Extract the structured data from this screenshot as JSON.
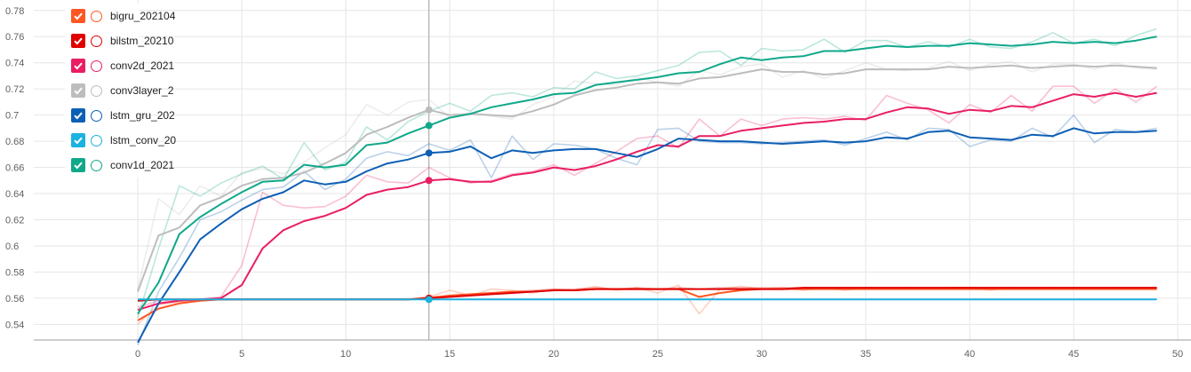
{
  "chart_data": {
    "type": "line",
    "title": "",
    "xlabel": "",
    "ylabel": "",
    "xlim": [
      -5,
      50
    ],
    "ylim": [
      0.528,
      0.788
    ],
    "grid": true,
    "legend_position": "top-left",
    "x_ticks": [
      0,
      5,
      10,
      15,
      20,
      25,
      30,
      35,
      40,
      45,
      50
    ],
    "y_ticks": [
      0.54,
      0.56,
      0.58,
      0.6,
      0.62,
      0.64,
      0.66,
      0.68,
      0.7,
      0.72,
      0.74,
      0.76,
      0.78
    ],
    "x_tick_labels": [
      "0",
      "5",
      "10",
      "15",
      "20",
      "25",
      "30",
      "35",
      "40",
      "45",
      "50"
    ],
    "y_tick_labels": [
      "0.54",
      "0.56",
      "0.58",
      "0.6",
      "0.62",
      "0.64",
      "0.66",
      "0.68",
      "0.7",
      "0.72",
      "0.74",
      "0.76",
      "0.78"
    ],
    "hover_x": 14,
    "x": [
      0,
      1,
      2,
      3,
      4,
      5,
      6,
      7,
      8,
      9,
      10,
      11,
      12,
      13,
      14,
      15,
      16,
      17,
      18,
      19,
      20,
      21,
      22,
      23,
      24,
      25,
      26,
      27,
      28,
      29,
      30,
      31,
      32,
      33,
      34,
      35,
      36,
      37,
      38,
      39,
      40,
      41,
      42,
      43,
      44,
      45,
      46,
      47,
      48,
      49
    ],
    "series": [
      {
        "name": "bigru_202104",
        "color": "#ff5722",
        "values": [
          0.543,
          0.552,
          0.556,
          0.558,
          0.559,
          0.559,
          0.559,
          0.559,
          0.559,
          0.559,
          0.559,
          0.559,
          0.559,
          0.559,
          0.56,
          0.562,
          0.563,
          0.564,
          0.565,
          0.565,
          0.566,
          0.566,
          0.567,
          0.567,
          0.567,
          0.567,
          0.567,
          0.561,
          0.564,
          0.566,
          0.567,
          0.567,
          0.567,
          0.567,
          0.567,
          0.567,
          0.567,
          0.567,
          0.567,
          0.567,
          0.567,
          0.567,
          0.567,
          0.567,
          0.567,
          0.567,
          0.567,
          0.567,
          0.567,
          0.567
        ],
        "raw": [
          0.54,
          0.555,
          0.557,
          0.559,
          0.559,
          0.559,
          0.559,
          0.559,
          0.559,
          0.559,
          0.559,
          0.559,
          0.559,
          0.559,
          0.561,
          0.566,
          0.562,
          0.567,
          0.566,
          0.564,
          0.567,
          0.566,
          0.569,
          0.566,
          0.568,
          0.564,
          0.57,
          0.548,
          0.567,
          0.569,
          0.567,
          0.568,
          0.566,
          0.568,
          0.566,
          0.568,
          0.567,
          0.568,
          0.567,
          0.568,
          0.568,
          0.566,
          0.568,
          0.567,
          0.568,
          0.567,
          0.567,
          0.568,
          0.567,
          0.567
        ]
      },
      {
        "name": "bilstm_20210",
        "color": "#e00000",
        "values": [
          0.558,
          0.559,
          0.559,
          0.559,
          0.559,
          0.559,
          0.559,
          0.559,
          0.559,
          0.559,
          0.559,
          0.559,
          0.559,
          0.559,
          0.56,
          0.561,
          0.562,
          0.563,
          0.564,
          0.565,
          0.566,
          0.566,
          0.567,
          0.567,
          0.567,
          0.567,
          0.567,
          0.567,
          0.567,
          0.567,
          0.567,
          0.567,
          0.568,
          0.568,
          0.568,
          0.568,
          0.568,
          0.568,
          0.568,
          0.568,
          0.568,
          0.568,
          0.568,
          0.568,
          0.568,
          0.568,
          0.568,
          0.568,
          0.568,
          0.568
        ],
        "raw": [
          0.558,
          0.559,
          0.559,
          0.559,
          0.559,
          0.559,
          0.559,
          0.559,
          0.559,
          0.559,
          0.559,
          0.559,
          0.559,
          0.559,
          0.561,
          0.562,
          0.563,
          0.564,
          0.565,
          0.566,
          0.567,
          0.567,
          0.568,
          0.567,
          0.568,
          0.567,
          0.568,
          0.567,
          0.568,
          0.568,
          0.568,
          0.568,
          0.568,
          0.568,
          0.568,
          0.568,
          0.568,
          0.568,
          0.568,
          0.568,
          0.568,
          0.568,
          0.568,
          0.568,
          0.568,
          0.568,
          0.568,
          0.568,
          0.568,
          0.568
        ]
      },
      {
        "name": "conv2d_2021",
        "color": "#e91e63",
        "values": [
          0.551,
          0.556,
          0.558,
          0.559,
          0.56,
          0.57,
          0.598,
          0.612,
          0.619,
          0.623,
          0.629,
          0.639,
          0.643,
          0.645,
          0.65,
          0.651,
          0.649,
          0.649,
          0.654,
          0.656,
          0.66,
          0.658,
          0.661,
          0.666,
          0.672,
          0.677,
          0.676,
          0.684,
          0.684,
          0.688,
          0.69,
          0.692,
          0.694,
          0.695,
          0.697,
          0.697,
          0.702,
          0.706,
          0.705,
          0.701,
          0.704,
          0.703,
          0.707,
          0.706,
          0.711,
          0.716,
          0.714,
          0.717,
          0.714,
          0.717
        ],
        "raw": [
          0.553,
          0.558,
          0.559,
          0.559,
          0.561,
          0.585,
          0.641,
          0.631,
          0.629,
          0.63,
          0.638,
          0.654,
          0.649,
          0.648,
          0.66,
          0.652,
          0.648,
          0.65,
          0.655,
          0.657,
          0.662,
          0.654,
          0.663,
          0.672,
          0.682,
          0.684,
          0.675,
          0.697,
          0.684,
          0.697,
          0.692,
          0.697,
          0.698,
          0.697,
          0.699,
          0.696,
          0.715,
          0.709,
          0.704,
          0.694,
          0.708,
          0.702,
          0.715,
          0.703,
          0.722,
          0.722,
          0.709,
          0.72,
          0.71,
          0.722
        ]
      },
      {
        "name": "conv3layer_2",
        "color": "#bdbdbd",
        "values": [
          0.565,
          0.608,
          0.614,
          0.631,
          0.637,
          0.646,
          0.651,
          0.652,
          0.656,
          0.663,
          0.671,
          0.685,
          0.691,
          0.698,
          0.704,
          0.7,
          0.701,
          0.7,
          0.699,
          0.703,
          0.708,
          0.715,
          0.719,
          0.721,
          0.724,
          0.725,
          0.724,
          0.728,
          0.729,
          0.732,
          0.735,
          0.733,
          0.733,
          0.731,
          0.732,
          0.735,
          0.735,
          0.735,
          0.735,
          0.737,
          0.736,
          0.737,
          0.738,
          0.736,
          0.737,
          0.738,
          0.737,
          0.738,
          0.737,
          0.736
        ],
        "raw": [
          0.567,
          0.636,
          0.624,
          0.646,
          0.638,
          0.656,
          0.659,
          0.655,
          0.664,
          0.675,
          0.685,
          0.708,
          0.7,
          0.71,
          0.712,
          0.698,
          0.702,
          0.699,
          0.697,
          0.708,
          0.714,
          0.726,
          0.724,
          0.723,
          0.729,
          0.725,
          0.722,
          0.734,
          0.731,
          0.737,
          0.739,
          0.729,
          0.734,
          0.728,
          0.734,
          0.74,
          0.735,
          0.734,
          0.736,
          0.741,
          0.734,
          0.739,
          0.741,
          0.733,
          0.739,
          0.739,
          0.735,
          0.74,
          0.736,
          0.735
        ]
      },
      {
        "name": "lstm_gru_202",
        "color": "#0d5fb5",
        "values": [
          0.526,
          0.556,
          0.58,
          0.605,
          0.617,
          0.628,
          0.636,
          0.641,
          0.65,
          0.647,
          0.649,
          0.657,
          0.663,
          0.666,
          0.671,
          0.672,
          0.676,
          0.667,
          0.673,
          0.671,
          0.673,
          0.674,
          0.674,
          0.671,
          0.668,
          0.674,
          0.682,
          0.681,
          0.68,
          0.68,
          0.679,
          0.678,
          0.679,
          0.68,
          0.679,
          0.68,
          0.683,
          0.682,
          0.687,
          0.688,
          0.683,
          0.682,
          0.681,
          0.685,
          0.684,
          0.69,
          0.686,
          0.687,
          0.687,
          0.688
        ],
        "raw": [
          0.524,
          0.565,
          0.591,
          0.62,
          0.626,
          0.635,
          0.643,
          0.645,
          0.657,
          0.643,
          0.651,
          0.667,
          0.672,
          0.669,
          0.678,
          0.673,
          0.681,
          0.652,
          0.684,
          0.666,
          0.678,
          0.677,
          0.674,
          0.667,
          0.662,
          0.689,
          0.69,
          0.68,
          0.679,
          0.679,
          0.678,
          0.679,
          0.68,
          0.681,
          0.677,
          0.682,
          0.687,
          0.681,
          0.69,
          0.689,
          0.676,
          0.681,
          0.68,
          0.69,
          0.683,
          0.7,
          0.679,
          0.689,
          0.687,
          0.69
        ]
      },
      {
        "name": "lstm_conv_20",
        "color": "#1ab2e0",
        "values": [
          0.559,
          0.559,
          0.559,
          0.559,
          0.559,
          0.559,
          0.559,
          0.559,
          0.559,
          0.559,
          0.559,
          0.559,
          0.559,
          0.559,
          0.559,
          0.559,
          0.559,
          0.559,
          0.559,
          0.559,
          0.559,
          0.559,
          0.559,
          0.559,
          0.559,
          0.559,
          0.559,
          0.559,
          0.559,
          0.559,
          0.559,
          0.559,
          0.559,
          0.559,
          0.559,
          0.559,
          0.559,
          0.559,
          0.559,
          0.559,
          0.559,
          0.559,
          0.559,
          0.559,
          0.559,
          0.559,
          0.559,
          0.559,
          0.559,
          0.559
        ],
        "raw": []
      },
      {
        "name": "conv1d_2021",
        "color": "#10a88a",
        "values": [
          0.548,
          0.572,
          0.609,
          0.622,
          0.632,
          0.641,
          0.649,
          0.65,
          0.662,
          0.66,
          0.662,
          0.677,
          0.679,
          0.686,
          0.692,
          0.698,
          0.701,
          0.706,
          0.709,
          0.712,
          0.716,
          0.717,
          0.723,
          0.725,
          0.727,
          0.729,
          0.732,
          0.733,
          0.739,
          0.744,
          0.742,
          0.744,
          0.745,
          0.749,
          0.749,
          0.751,
          0.753,
          0.752,
          0.753,
          0.753,
          0.755,
          0.754,
          0.753,
          0.754,
          0.756,
          0.755,
          0.756,
          0.755,
          0.757,
          0.76
        ],
        "raw": [
          0.545,
          0.598,
          0.646,
          0.638,
          0.648,
          0.655,
          0.661,
          0.651,
          0.679,
          0.658,
          0.664,
          0.691,
          0.681,
          0.695,
          0.703,
          0.709,
          0.703,
          0.715,
          0.717,
          0.714,
          0.721,
          0.72,
          0.733,
          0.728,
          0.73,
          0.734,
          0.738,
          0.748,
          0.749,
          0.738,
          0.751,
          0.749,
          0.75,
          0.758,
          0.748,
          0.757,
          0.757,
          0.752,
          0.756,
          0.752,
          0.758,
          0.752,
          0.751,
          0.756,
          0.763,
          0.755,
          0.758,
          0.753,
          0.761,
          0.766
        ]
      }
    ]
  }
}
